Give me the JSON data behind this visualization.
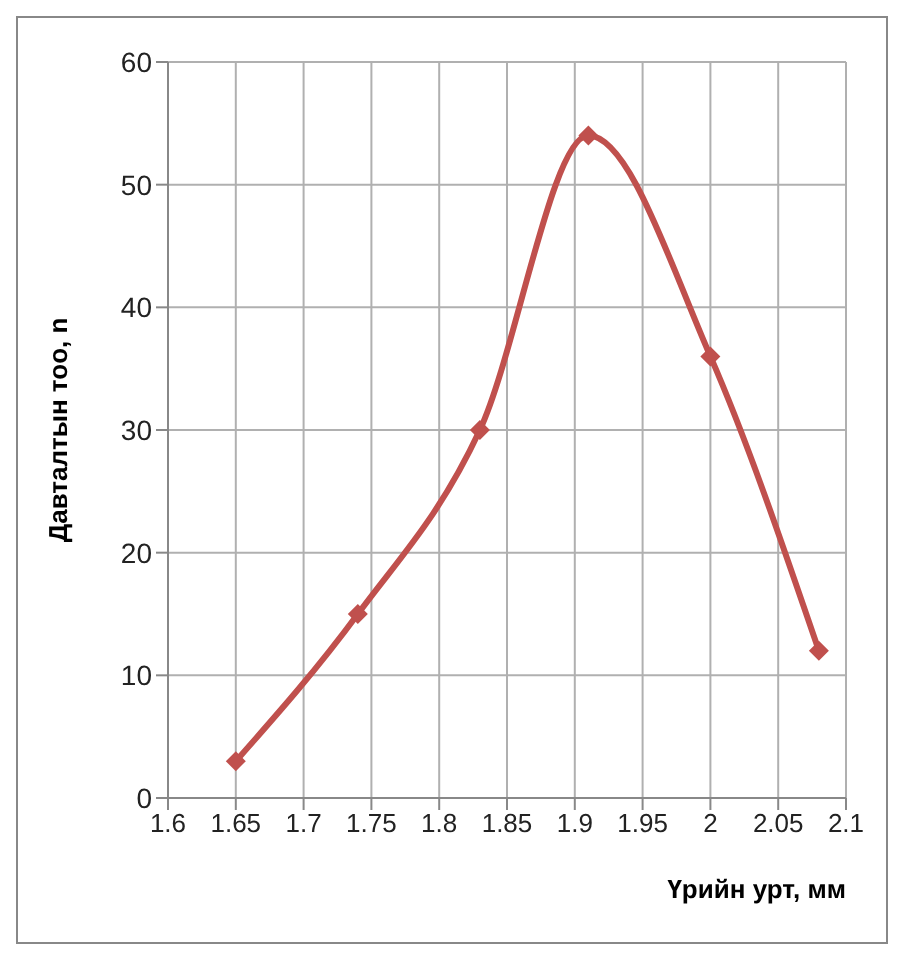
{
  "chart_data": {
    "type": "line",
    "xlabel": "Үрийн урт, мм",
    "ylabel": "Давталтын тоо, n",
    "x": [
      1.65,
      1.74,
      1.83,
      1.91,
      2.0,
      2.08
    ],
    "series": [
      {
        "color": "#c0504d",
        "values": [
          3,
          15,
          30,
          54,
          36,
          12
        ]
      }
    ],
    "xlim": [
      1.6,
      2.1
    ],
    "xticks": [
      1.6,
      1.65,
      1.7,
      1.75,
      1.8,
      1.85,
      1.9,
      1.95,
      2,
      2.05,
      2.1
    ],
    "ylim": [
      0,
      60
    ],
    "yticks": [
      0,
      10,
      20,
      30,
      40,
      50,
      60
    ],
    "grid": true,
    "legend": false,
    "marker": "diamond",
    "line_style": "solid"
  }
}
